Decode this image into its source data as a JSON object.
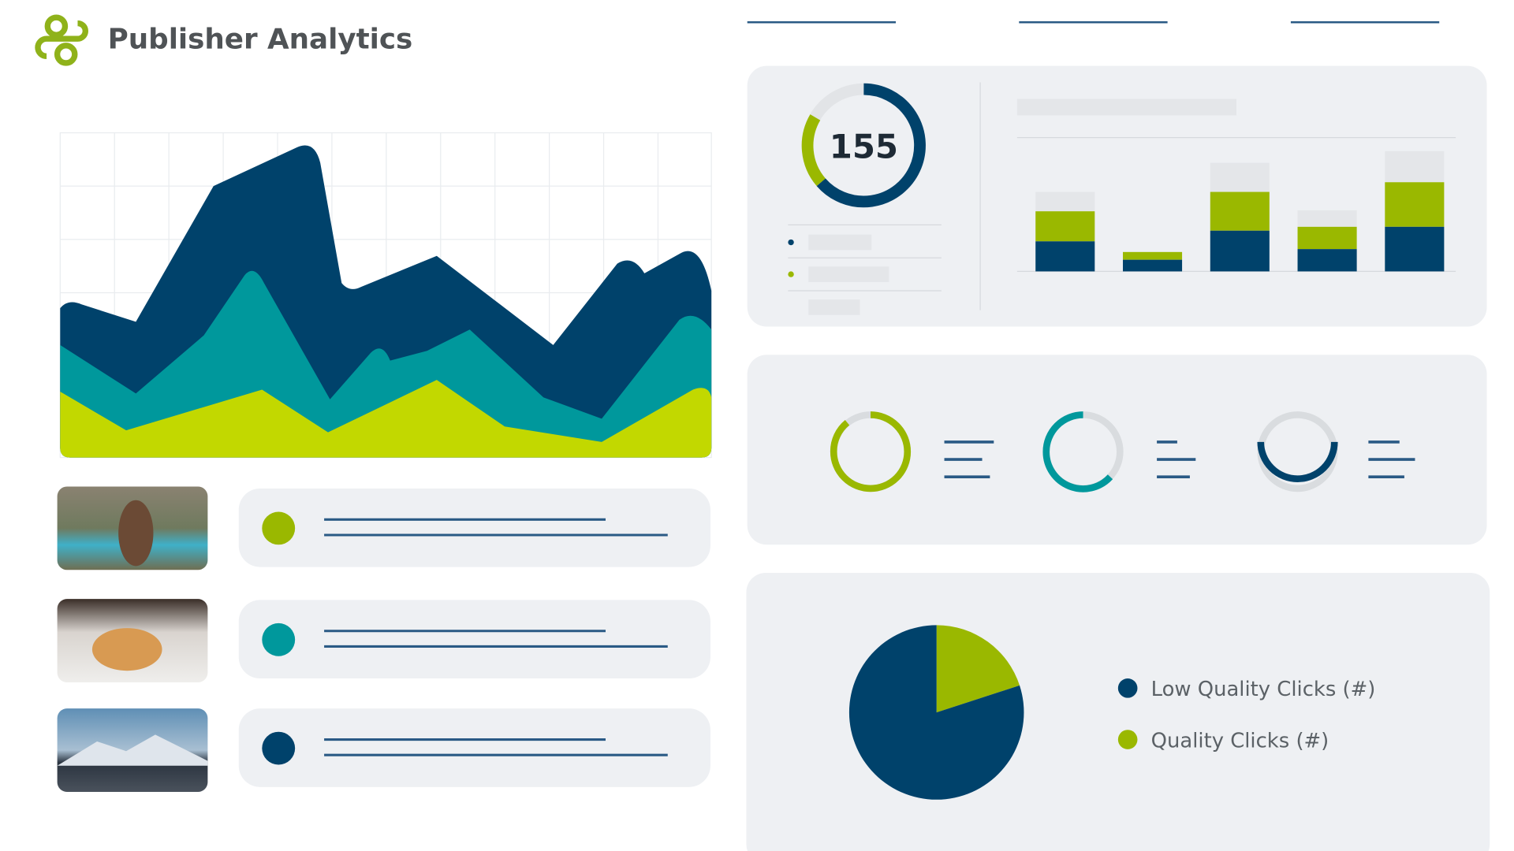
{
  "header": {
    "title": "Publisher Analytics"
  },
  "gauge": {
    "value": 155
  },
  "chart_data": {
    "type": "pie",
    "categories": [
      "Low Quality Clicks (#)",
      "Quality Clicks (#)"
    ],
    "values": [
      80,
      20
    ],
    "colors": [
      "#00426b",
      "#9ab800"
    ]
  }
}
